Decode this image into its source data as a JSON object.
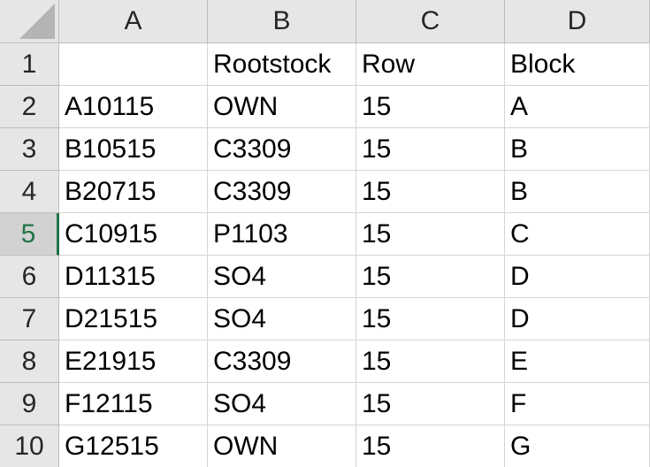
{
  "columns": [
    "A",
    "B",
    "C",
    "D"
  ],
  "selected_row": 5,
  "rows": [
    {
      "num": "1",
      "cells": [
        "",
        "Rootstock",
        "Row",
        "Block"
      ]
    },
    {
      "num": "2",
      "cells": [
        "A10115",
        "OWN",
        "15",
        "A"
      ]
    },
    {
      "num": "3",
      "cells": [
        "B10515",
        "C3309",
        "15",
        "B"
      ]
    },
    {
      "num": "4",
      "cells": [
        "B20715",
        "C3309",
        "15",
        "B"
      ]
    },
    {
      "num": "5",
      "cells": [
        "C10915",
        "P1103",
        "15",
        "C"
      ]
    },
    {
      "num": "6",
      "cells": [
        "D11315",
        "SO4",
        "15",
        "D"
      ]
    },
    {
      "num": "7",
      "cells": [
        "D21515",
        "SO4",
        "15",
        "D"
      ]
    },
    {
      "num": "8",
      "cells": [
        "E21915",
        "C3309",
        "15",
        "E"
      ]
    },
    {
      "num": "9",
      "cells": [
        "F12115",
        "SO4",
        "15",
        "F"
      ]
    },
    {
      "num": "10",
      "cells": [
        "G12515",
        "OWN",
        "15",
        "G"
      ]
    }
  ],
  "colors": {
    "header_bg": "#e6e6e6",
    "selected_accent": "#217346",
    "gridline": "#d4d4d4"
  }
}
